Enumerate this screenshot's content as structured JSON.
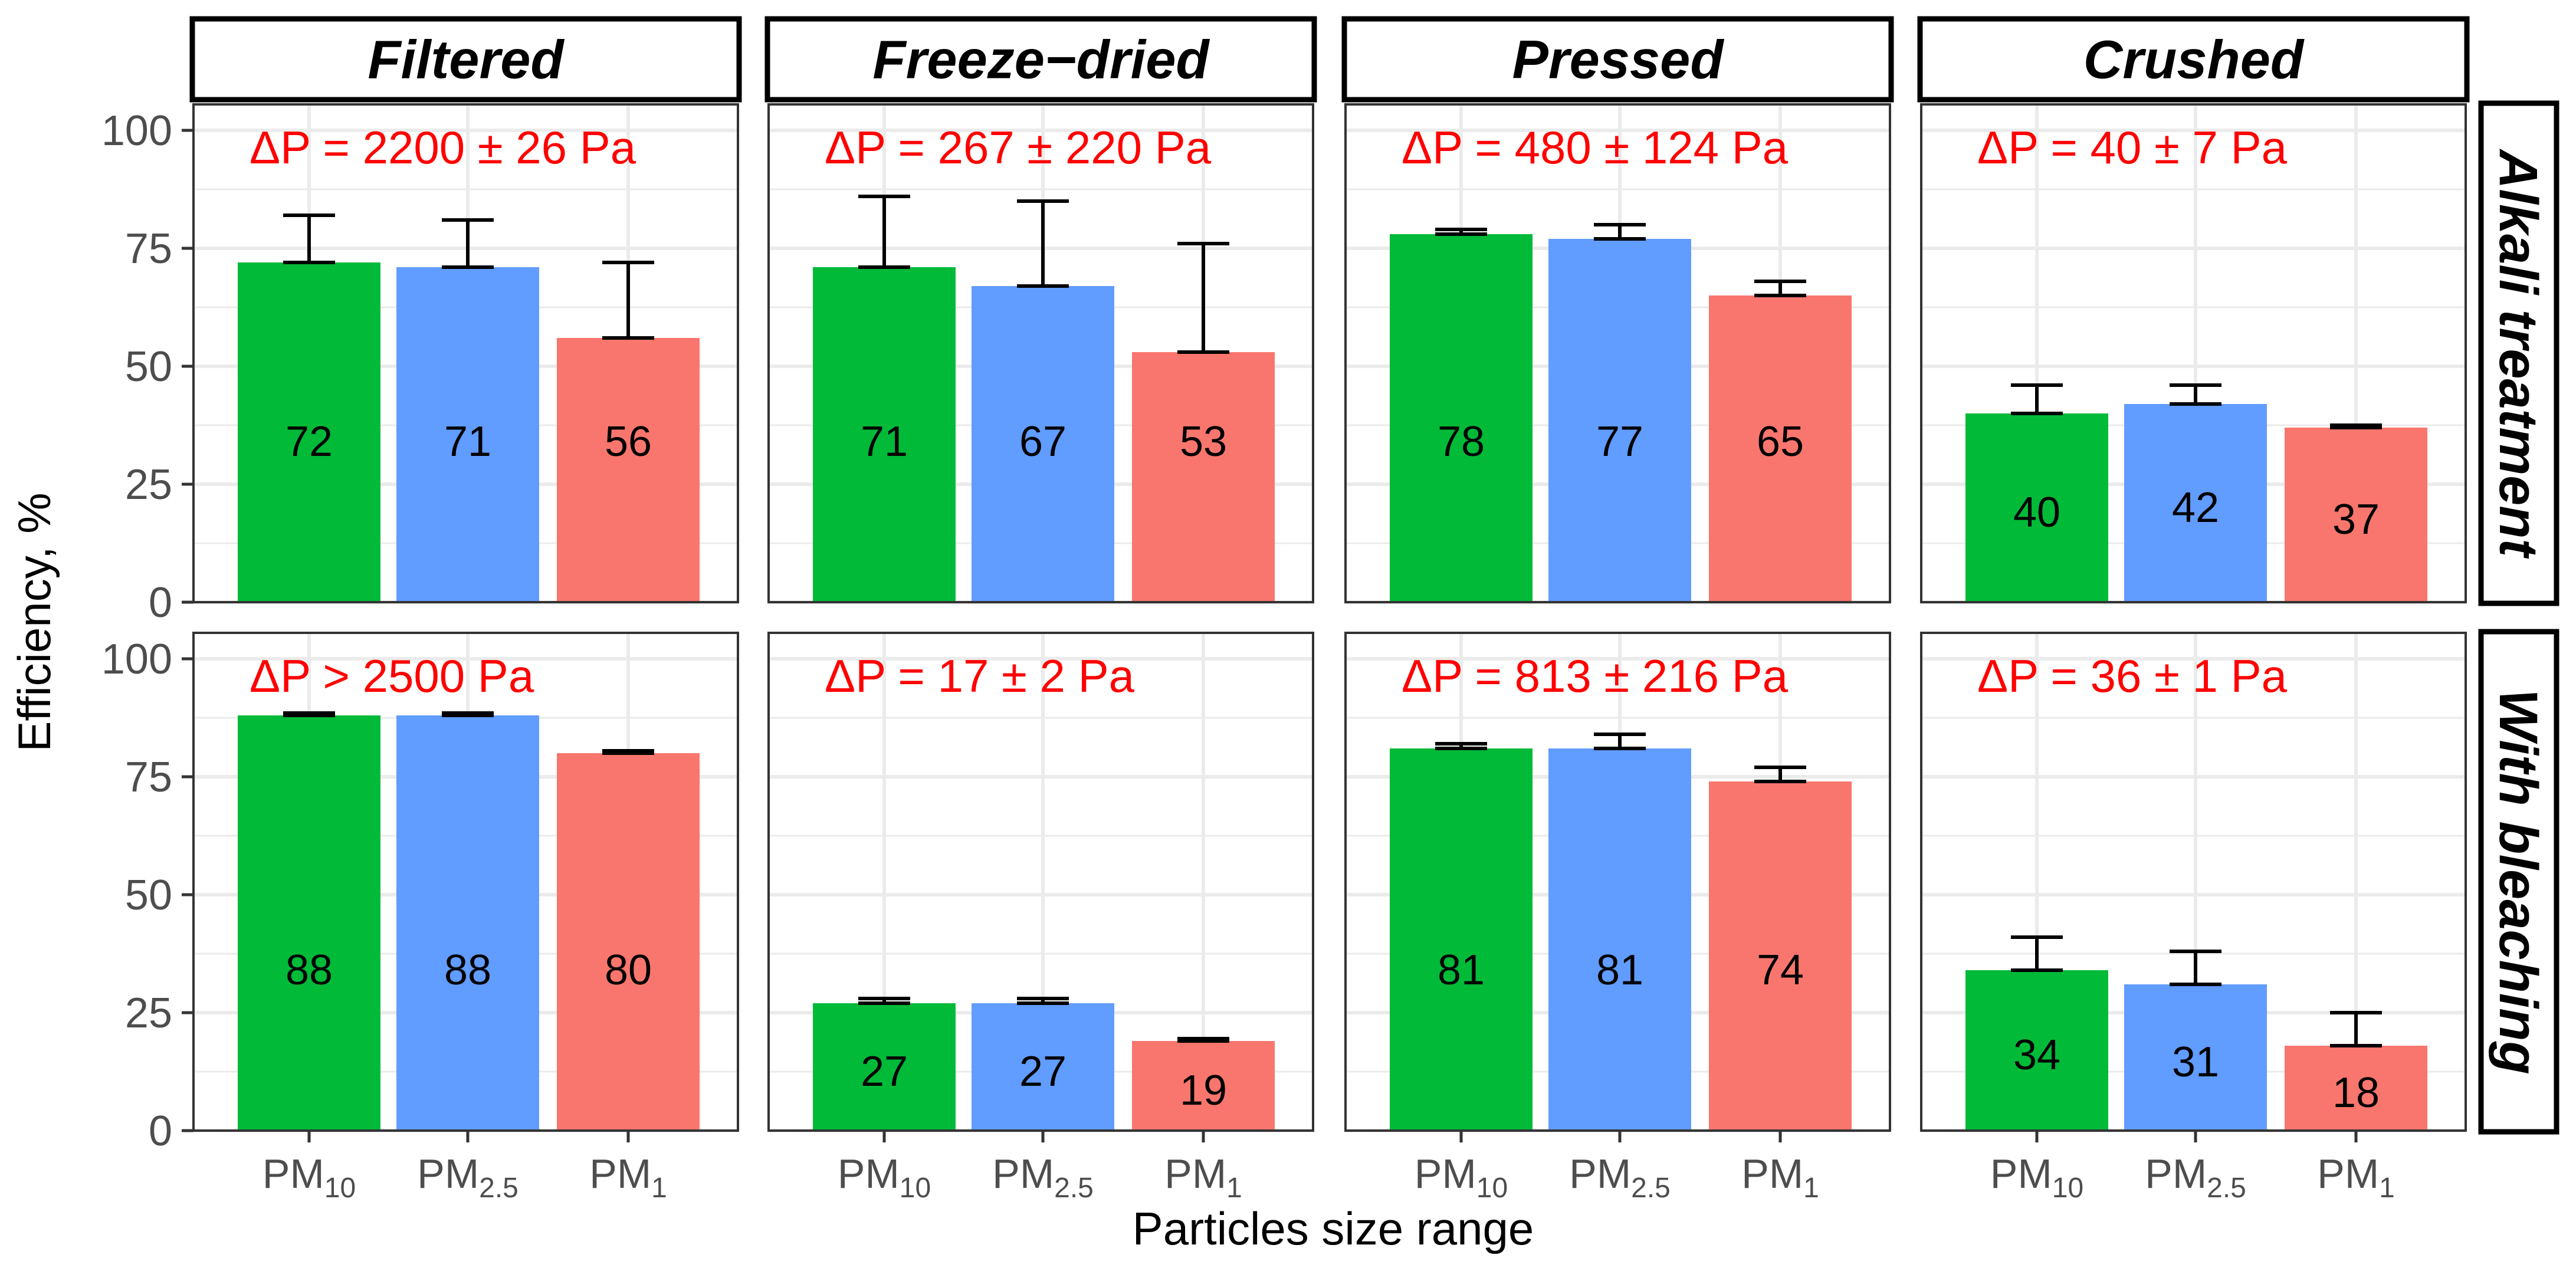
{
  "chart_data": {
    "type": "bar",
    "title": "",
    "xlabel": "Particles size range",
    "ylabel": "Efficiency, %",
    "ylim": [
      0,
      100
    ],
    "yticks": [
      "0",
      "25",
      "50",
      "75",
      "100"
    ],
    "categories": [
      {
        "base": "PM",
        "sub": "10"
      },
      {
        "base": "PM",
        "sub": "2.5"
      },
      {
        "base": "PM",
        "sub": "1"
      }
    ],
    "colors": {
      "PM10": "#00ba38",
      "PM2.5": "#619cff",
      "PM1": "#f8766d",
      "annotation": "#ff0000",
      "grid": "#ebebeb"
    },
    "columns": [
      "Filtered",
      "Freeze−dried",
      "Pressed",
      "Crushed"
    ],
    "rows": [
      "Alkali treatment",
      "With bleaching"
    ],
    "panels": [
      {
        "row": 0,
        "col": 0,
        "dp": "ΔP = 2200 ± 26 Pa",
        "values": [
          72,
          71,
          56
        ],
        "err_upper": [
          82,
          81,
          72
        ],
        "labels": [
          "72",
          "71",
          "56"
        ]
      },
      {
        "row": 0,
        "col": 1,
        "dp": "ΔP = 267 ± 220 Pa",
        "values": [
          71,
          67,
          53
        ],
        "err_upper": [
          86,
          85,
          76
        ],
        "labels": [
          "71",
          "67",
          "53"
        ]
      },
      {
        "row": 0,
        "col": 2,
        "dp": "ΔP = 480 ± 124 Pa",
        "values": [
          78,
          77,
          65
        ],
        "err_upper": [
          79,
          80,
          68
        ],
        "labels": [
          "78",
          "77",
          "65"
        ]
      },
      {
        "row": 0,
        "col": 3,
        "dp": "ΔP = 40 ± 7 Pa",
        "values": [
          40,
          42,
          37
        ],
        "err_upper": [
          46,
          46,
          37.5
        ],
        "labels": [
          "40",
          "42",
          "37"
        ]
      },
      {
        "row": 1,
        "col": 0,
        "dp": "ΔP > 2500 Pa",
        "values": [
          88,
          88,
          80
        ],
        "err_upper": [
          88.5,
          88.5,
          80.5
        ],
        "labels": [
          "88",
          "88",
          "80"
        ]
      },
      {
        "row": 1,
        "col": 1,
        "dp": "ΔP = 17 ± 2 Pa",
        "values": [
          27,
          27,
          19
        ],
        "err_upper": [
          28,
          28,
          19.5
        ],
        "labels": [
          "27",
          "27",
          "19"
        ]
      },
      {
        "row": 1,
        "col": 2,
        "dp": "ΔP = 813 ± 216 Pa",
        "values": [
          81,
          81,
          74
        ],
        "err_upper": [
          82,
          84,
          77
        ],
        "labels": [
          "81",
          "81",
          "74"
        ]
      },
      {
        "row": 1,
        "col": 3,
        "dp": "ΔP = 36 ± 1 Pa",
        "values": [
          34,
          31,
          18
        ],
        "err_upper": [
          41,
          38,
          25
        ],
        "labels": [
          "34",
          "31",
          "18"
        ]
      }
    ]
  }
}
